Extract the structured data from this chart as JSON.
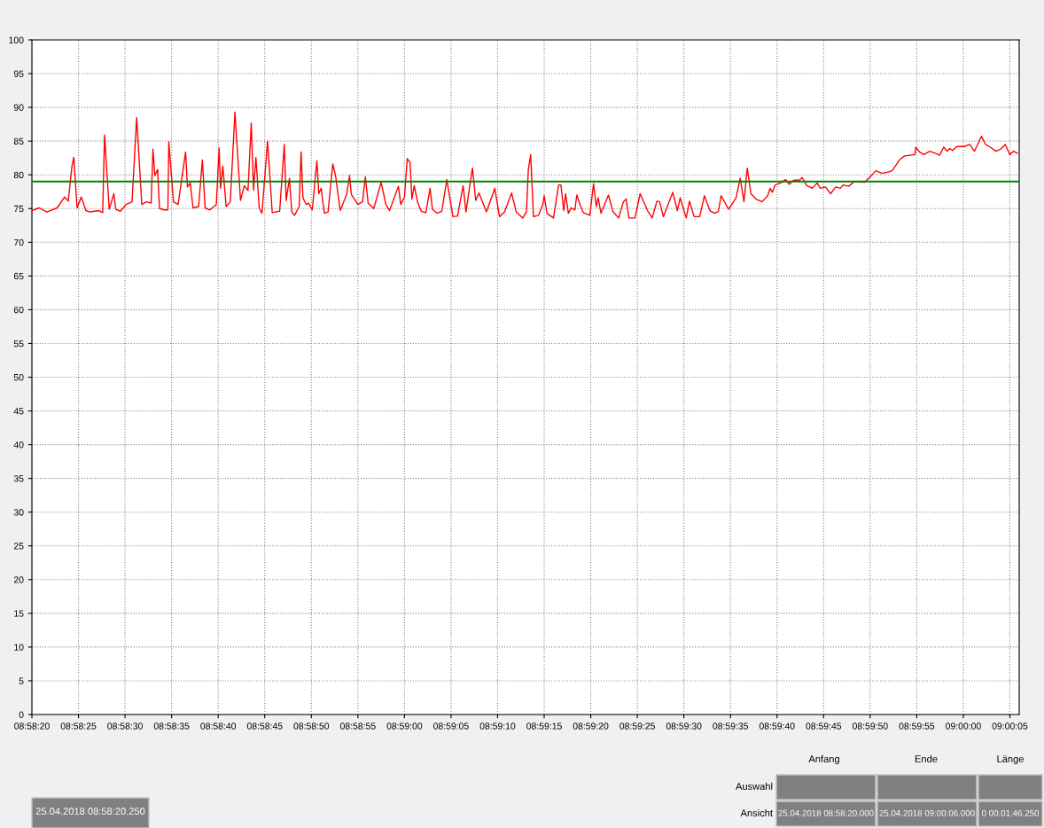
{
  "chart_data": {
    "type": "line",
    "x": [
      "2018-04-25T08:58:20.0",
      "2018-04-25T08:58:20.8",
      "2018-04-25T08:58:21.6",
      "2018-04-25T08:58:22.7",
      "2018-04-25T08:58:23.5",
      "2018-04-25T08:58:23.9",
      "2018-04-25T08:58:24.3",
      "2018-04-25T08:58:24.5",
      "2018-04-25T08:58:24.85",
      "2018-04-25T08:58:25.3",
      "2018-04-25T08:58:25.8",
      "2018-04-25T08:58:26.25",
      "2018-04-25T08:58:27.2",
      "2018-04-25T08:58:27.6",
      "2018-04-25T08:58:27.8",
      "2018-04-25T08:58:28.3",
      "2018-04-25T08:58:28.8",
      "2018-04-25T08:58:29.0",
      "2018-04-25T08:58:29.5",
      "2018-04-25T08:58:30.1",
      "2018-04-25T08:58:30.75",
      "2018-04-25T08:58:31.25",
      "2018-04-25T08:58:31.8",
      "2018-04-25T08:58:32.3",
      "2018-04-25T08:58:32.8",
      "2018-04-25T08:58:33.0",
      "2018-04-25T08:58:33.2",
      "2018-04-25T08:58:33.5",
      "2018-04-25T08:58:33.7",
      "2018-04-25T08:58:34.2",
      "2018-04-25T08:58:34.6",
      "2018-04-25T08:58:34.7",
      "2018-04-25T08:58:35.2",
      "2018-04-25T08:58:35.7",
      "2018-04-25T08:58:36.5",
      "2018-04-25T08:58:36.7",
      "2018-04-25T08:58:37.0",
      "2018-04-25T08:58:37.3",
      "2018-04-25T08:58:37.9",
      "2018-04-25T08:58:38.3",
      "2018-04-25T08:58:38.6",
      "2018-04-25T08:58:39.1",
      "2018-04-25T08:58:39.8",
      "2018-04-25T08:58:40.1",
      "2018-04-25T08:58:40.25",
      "2018-04-25T08:58:40.5",
      "2018-04-25T08:58:40.85",
      "2018-04-25T08:58:41.3",
      "2018-04-25T08:58:41.8",
      "2018-04-25T08:58:42.4",
      "2018-04-25T08:58:42.8",
      "2018-04-25T08:58:43.2",
      "2018-04-25T08:58:43.55",
      "2018-04-25T08:58:43.8",
      "2018-04-25T08:58:44.05",
      "2018-04-25T08:58:44.4",
      "2018-04-25T08:58:44.7",
      "2018-04-25T08:58:45.3",
      "2018-04-25T08:58:45.8",
      "2018-04-25T08:58:46.6",
      "2018-04-25T08:58:47.1",
      "2018-04-25T08:58:47.3",
      "2018-04-25T08:58:47.65",
      "2018-04-25T08:58:47.9",
      "2018-04-25T08:58:48.2",
      "2018-04-25T08:58:48.7",
      "2018-04-25T08:58:48.9",
      "2018-04-25T08:58:49.1",
      "2018-04-25T08:58:49.45",
      "2018-04-25T08:58:49.7",
      "2018-04-25T08:58:50.1",
      "2018-04-25T08:58:50.6",
      "2018-04-25T08:58:50.8",
      "2018-04-25T08:58:51.05",
      "2018-04-25T08:58:51.4",
      "2018-04-25T08:58:51.8",
      "2018-04-25T08:58:52.3",
      "2018-04-25T08:58:52.6",
      "2018-04-25T08:58:53.1",
      "2018-04-25T08:58:53.8",
      "2018-04-25T08:58:54.1",
      "2018-04-25T08:58:54.3",
      "2018-04-25T08:58:55.0",
      "2018-04-25T08:58:55.5",
      "2018-04-25T08:58:55.8",
      "2018-04-25T08:58:56.1",
      "2018-04-25T08:58:56.7",
      "2018-04-25T08:58:57.5",
      "2018-04-25T08:58:58.0",
      "2018-04-25T08:58:58.4",
      "2018-04-25T08:58:59.35",
      "2018-04-25T08:58:59.6",
      "2018-04-25T08:59:00.0",
      "2018-04-25T08:59:00.3",
      "2018-04-25T08:59:00.6",
      "2018-04-25T08:59:00.8",
      "2018-04-25T08:59:01.05",
      "2018-04-25T08:59:01.4",
      "2018-04-25T08:59:01.8",
      "2018-04-25T08:59:02.3",
      "2018-04-25T08:59:02.75",
      "2018-04-25T08:59:03.0",
      "2018-04-25T08:59:03.5",
      "2018-04-25T08:59:04.0",
      "2018-04-25T08:59:04.55",
      "2018-04-25T08:59:05.2",
      "2018-04-25T08:59:05.7",
      "2018-04-25T08:59:06.3",
      "2018-04-25T08:59:06.6",
      "2018-04-25T08:59:07.3",
      "2018-04-25T08:59:07.65",
      "2018-04-25T08:59:08.0",
      "2018-04-25T08:59:08.8",
      "2018-04-25T08:59:09.7",
      "2018-04-25T08:59:10.2",
      "2018-04-25T08:59:10.75",
      "2018-04-25T08:59:11.5",
      "2018-04-25T08:59:12.0",
      "2018-04-25T08:59:12.7",
      "2018-04-25T08:59:13.1",
      "2018-04-25T08:59:13.3",
      "2018-04-25T08:59:13.55",
      "2018-04-25T08:59:13.85",
      "2018-04-25T08:59:14.4",
      "2018-04-25T08:59:14.85",
      "2018-04-25T08:59:15.0",
      "2018-04-25T08:59:15.3",
      "2018-04-25T08:59:16.0",
      "2018-04-25T08:59:16.55",
      "2018-04-25T08:59:16.8",
      "2018-04-25T08:59:17.1",
      "2018-04-25T08:59:17.3",
      "2018-04-25T08:59:17.6",
      "2018-04-25T08:59:17.9",
      "2018-04-25T08:59:18.3",
      "2018-04-25T08:59:18.5",
      "2018-04-25T08:59:18.9",
      "2018-04-25T08:59:19.2",
      "2018-04-25T08:59:19.9",
      "2018-04-25T08:59:20.3",
      "2018-04-25T08:59:20.6",
      "2018-04-25T08:59:20.8",
      "2018-04-25T08:59:21.1",
      "2018-04-25T08:59:21.9",
      "2018-04-25T08:59:22.4",
      "2018-04-25T08:59:23.0",
      "2018-04-25T08:59:23.5",
      "2018-04-25T08:59:23.8",
      "2018-04-25T08:59:24.1",
      "2018-04-25T08:59:24.75",
      "2018-04-25T08:59:25.3",
      "2018-04-25T08:59:26.1",
      "2018-04-25T08:59:26.6",
      "2018-04-25T08:59:27.1",
      "2018-04-25T08:59:27.4",
      "2018-04-25T08:59:27.8",
      "2018-04-25T08:59:28.8",
      "2018-04-25T08:59:29.3",
      "2018-04-25T08:59:29.6",
      "2018-04-25T08:59:30.25",
      "2018-04-25T08:59:30.6",
      "2018-04-25T08:59:31.1",
      "2018-04-25T08:59:31.7",
      "2018-04-25T08:59:32.2",
      "2018-04-25T08:59:32.8",
      "2018-04-25T08:59:33.3",
      "2018-04-25T08:59:33.7",
      "2018-04-25T08:59:34.0",
      "2018-04-25T08:59:34.8",
      "2018-04-25T08:59:35.6",
      "2018-04-25T08:59:36.05",
      "2018-04-25T08:59:36.45",
      "2018-04-25T08:59:36.8",
      "2018-04-25T08:59:37.2",
      "2018-04-25T08:59:37.75",
      "2018-04-25T08:59:38.4",
      "2018-04-25T08:59:39.0",
      "2018-04-25T08:59:39.25",
      "2018-04-25T08:59:39.5",
      "2018-04-25T08:59:39.8",
      "2018-04-25T08:59:40.4",
      "2018-04-25T08:59:40.9",
      "2018-04-25T08:59:41.3",
      "2018-04-25T08:59:41.8",
      "2018-04-25T08:59:42.4",
      "2018-04-25T08:59:42.7",
      "2018-04-25T08:59:43.2",
      "2018-04-25T08:59:43.8",
      "2018-04-25T08:59:44.3",
      "2018-04-25T08:59:44.65",
      "2018-04-25T08:59:45.2",
      "2018-04-25T08:59:45.75",
      "2018-04-25T08:59:46.3",
      "2018-04-25T08:59:46.8",
      "2018-04-25T08:59:47.1",
      "2018-04-25T08:59:47.7",
      "2018-04-25T08:59:48.3",
      "2018-04-25T08:59:49.4",
      "2018-04-25T08:59:50.0",
      "2018-04-25T08:59:50.6",
      "2018-04-25T08:59:51.3",
      "2018-04-25T08:59:51.9",
      "2018-04-25T08:59:52.35",
      "2018-04-25T08:59:52.8",
      "2018-04-25T08:59:53.2",
      "2018-04-25T08:59:53.7",
      "2018-04-25T08:59:54.8",
      "2018-04-25T08:59:54.9",
      "2018-04-25T08:59:55.3",
      "2018-04-25T08:59:55.75",
      "2018-04-25T08:59:56.4",
      "2018-04-25T08:59:57.0",
      "2018-04-25T08:59:57.45",
      "2018-04-25T08:59:57.9",
      "2018-04-25T08:59:58.25",
      "2018-04-25T08:59:58.55",
      "2018-04-25T08:59:58.85",
      "2018-04-25T08:59:59.3",
      "2018-04-25T09:00:00.1",
      "2018-04-25T09:00:00.7",
      "2018-04-25T09:00:01.2",
      "2018-04-25T09:00:01.95",
      "2018-04-25T09:00:02.4",
      "2018-04-25T09:00:02.9",
      "2018-04-25T09:00:03.5",
      "2018-04-25T09:00:04.0",
      "2018-04-25T09:00:04.5",
      "2018-04-25T09:00:05.0",
      "2018-04-25T09:00:05.4",
      "2018-04-25T09:00:05.8"
    ],
    "series": [
      {
        "color": "#ff0000",
        "values": [
          74.7,
          75.1,
          74.5,
          75.1,
          76.7,
          76.1,
          81.3,
          82.6,
          75.1,
          76.7,
          74.7,
          74.5,
          74.7,
          74.4,
          85.9,
          74.9,
          77.2,
          74.9,
          74.6,
          75.6,
          76.0,
          88.5,
          75.6,
          76.0,
          75.8,
          83.8,
          79.9,
          80.8,
          75.0,
          74.8,
          74.8,
          84.9,
          76.0,
          75.6,
          83.4,
          78.2,
          78.8,
          75.1,
          75.3,
          82.2,
          75.1,
          74.8,
          75.6,
          84.0,
          78.0,
          81.3,
          75.3,
          76.0,
          89.3,
          76.2,
          78.4,
          77.7,
          87.7,
          77.7,
          82.6,
          75.1,
          74.3,
          85.0,
          74.4,
          74.6,
          84.5,
          76.2,
          79.5,
          74.5,
          74.0,
          75.3,
          83.4,
          76.6,
          75.6,
          75.8,
          74.8,
          82.1,
          77.2,
          78.0,
          74.3,
          74.5,
          81.6,
          79.9,
          74.7,
          77.1,
          79.9,
          77.1,
          75.6,
          76.0,
          79.7,
          75.8,
          75.0,
          78.9,
          75.6,
          74.7,
          78.3,
          75.6,
          76.7,
          82.4,
          81.8,
          76.4,
          78.4,
          76.0,
          74.6,
          74.4,
          78.0,
          74.9,
          74.3,
          74.6,
          79.3,
          73.8,
          73.9,
          78.4,
          74.5,
          81.0,
          76.2,
          77.3,
          74.5,
          78.0,
          73.8,
          74.5,
          77.3,
          74.5,
          73.6,
          74.5,
          80.8,
          83.0,
          73.8,
          74.0,
          75.6,
          76.9,
          74.3,
          73.6,
          78.5,
          78.5,
          74.7,
          77.2,
          74.3,
          75.1,
          74.8,
          77.0,
          75.4,
          74.4,
          74.0,
          78.7,
          75.3,
          76.6,
          74.3,
          77.0,
          74.5,
          73.6,
          76.0,
          76.4,
          73.6,
          73.6,
          77.2,
          74.7,
          73.6,
          76.1,
          76.0,
          73.8,
          77.4,
          74.7,
          76.6,
          73.6,
          76.1,
          73.8,
          73.8,
          76.9,
          74.7,
          74.3,
          74.6,
          76.9,
          74.9,
          76.6,
          79.5,
          76.0,
          81.0,
          77.2,
          76.4,
          76.0,
          76.9,
          78.0,
          77.4,
          78.5,
          78.8,
          79.3,
          78.6,
          79.2,
          79.2,
          79.6,
          78.4,
          78.0,
          78.8,
          78.0,
          78.2,
          77.2,
          78.2,
          78.0,
          78.5,
          78.3,
          79.0,
          78.9,
          79.7,
          80.6,
          80.2,
          80.4,
          80.6,
          81.5,
          82.3,
          82.8,
          83.0,
          84.1,
          83.4,
          83.0,
          83.5,
          83.2,
          82.9,
          84.1,
          83.5,
          83.9,
          83.6,
          84.2,
          84.2,
          84.5,
          83.5,
          85.7,
          84.5,
          84.1,
          83.5,
          83.8,
          84.5,
          83.0,
          83.5,
          83.2
        ]
      }
    ],
    "xlim": [
      "2018-04-25T08:58:20",
      "2018-04-25T09:00:06"
    ],
    "xticks": [
      {
        "value": "2018-04-25T08:58:20",
        "label": "08:58:20"
      },
      {
        "value": "2018-04-25T08:58:25",
        "label": "08:58:25"
      },
      {
        "value": "2018-04-25T08:58:30",
        "label": "08:58:30"
      },
      {
        "value": "2018-04-25T08:58:35",
        "label": "08:58:35"
      },
      {
        "value": "2018-04-25T08:58:40",
        "label": "08:58:40"
      },
      {
        "value": "2018-04-25T08:58:45",
        "label": "08:58:45"
      },
      {
        "value": "2018-04-25T08:58:50",
        "label": "08:58:50"
      },
      {
        "value": "2018-04-25T08:58:55",
        "label": "08:58:55"
      },
      {
        "value": "2018-04-25T08:59:00",
        "label": "08:59:00"
      },
      {
        "value": "2018-04-25T08:59:05",
        "label": "08:59:05"
      },
      {
        "value": "2018-04-25T08:59:10",
        "label": "08:59:10"
      },
      {
        "value": "2018-04-25T08:59:15",
        "label": "08:59:15"
      },
      {
        "value": "2018-04-25T08:59:20",
        "label": "08:59:20"
      },
      {
        "value": "2018-04-25T08:59:25",
        "label": "08:59:25"
      },
      {
        "value": "2018-04-25T08:59:30",
        "label": "08:59:30"
      },
      {
        "value": "2018-04-25T08:59:35",
        "label": "08:59:35"
      },
      {
        "value": "2018-04-25T08:59:40",
        "label": "08:59:40"
      },
      {
        "value": "2018-04-25T08:59:45",
        "label": "08:59:45"
      },
      {
        "value": "2018-04-25T08:59:50",
        "label": "08:59:50"
      },
      {
        "value": "2018-04-25T08:59:55",
        "label": "08:59:55"
      },
      {
        "value": "2018-04-25T09:00:00",
        "label": "09:00:00"
      },
      {
        "value": "2018-04-25T09:00:05",
        "label": "09:00:05"
      }
    ],
    "ylim": [
      0,
      100
    ],
    "yticks": [
      0,
      5,
      10,
      15,
      20,
      25,
      30,
      35,
      40,
      45,
      50,
      55,
      60,
      65,
      70,
      75,
      80,
      85,
      90,
      95,
      100
    ],
    "ref_lines": [
      {
        "axis": "y",
        "value": 79,
        "color": "#008000",
        "line_style": "solid"
      }
    ],
    "grid": true,
    "line_style": "solid",
    "marker": "none",
    "annotations": [
      "Anfang",
      "Ende",
      "Länge",
      "Auswahl",
      "Ansicht",
      "25.04.2018 08:58:20.000",
      "25.04.2018 09:00:06.000",
      "0 00:01:46.250",
      "25.04.2018 08:58:20.250"
    ]
  }
}
